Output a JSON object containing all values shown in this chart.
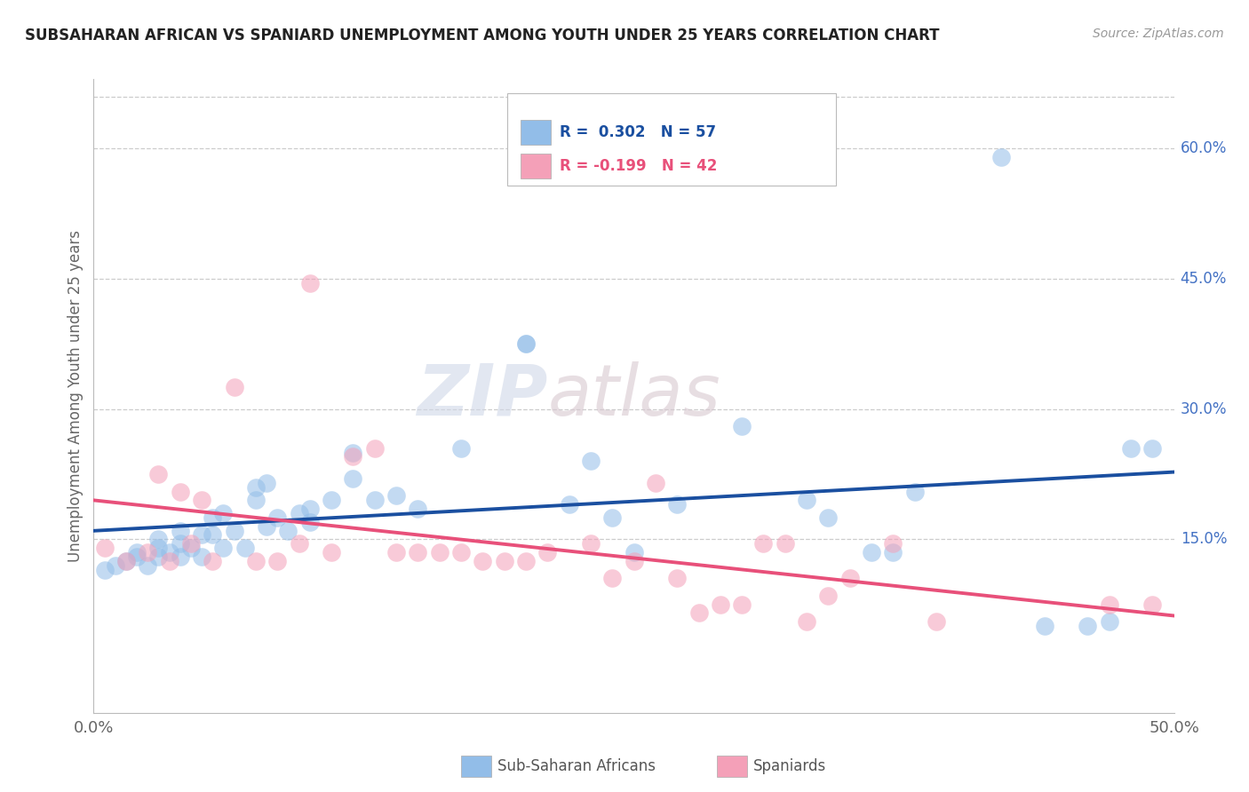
{
  "title": "SUBSAHARAN AFRICAN VS SPANIARD UNEMPLOYMENT AMONG YOUTH UNDER 25 YEARS CORRELATION CHART",
  "source": "Source: ZipAtlas.com",
  "ylabel": "Unemployment Among Youth under 25 years",
  "xlim": [
    0.0,
    0.5
  ],
  "ylim": [
    -0.05,
    0.68
  ],
  "yticks_right": [
    0.15,
    0.3,
    0.45,
    0.6
  ],
  "ytick_labels_right": [
    "15.0%",
    "30.0%",
    "45.0%",
    "60.0%"
  ],
  "blue_color": "#92BDE8",
  "pink_color": "#F4A0B8",
  "blue_line_color": "#1A4FA0",
  "pink_line_color": "#E8507A",
  "label_blue": "Sub-Saharan Africans",
  "label_pink": "Spaniards",
  "watermark_zip": "ZIP",
  "watermark_atlas": "atlas",
  "blue_scatter_x": [
    0.005,
    0.01,
    0.015,
    0.02,
    0.02,
    0.025,
    0.03,
    0.03,
    0.03,
    0.035,
    0.04,
    0.04,
    0.04,
    0.045,
    0.05,
    0.05,
    0.055,
    0.055,
    0.06,
    0.06,
    0.065,
    0.07,
    0.075,
    0.075,
    0.08,
    0.08,
    0.085,
    0.09,
    0.095,
    0.1,
    0.1,
    0.11,
    0.12,
    0.12,
    0.13,
    0.14,
    0.15,
    0.17,
    0.2,
    0.2,
    0.22,
    0.23,
    0.24,
    0.25,
    0.27,
    0.3,
    0.33,
    0.34,
    0.36,
    0.37,
    0.38,
    0.42,
    0.44,
    0.46,
    0.47,
    0.48,
    0.49
  ],
  "blue_scatter_y": [
    0.115,
    0.12,
    0.125,
    0.13,
    0.135,
    0.12,
    0.13,
    0.14,
    0.15,
    0.135,
    0.13,
    0.145,
    0.16,
    0.14,
    0.13,
    0.155,
    0.155,
    0.175,
    0.14,
    0.18,
    0.16,
    0.14,
    0.195,
    0.21,
    0.165,
    0.215,
    0.175,
    0.16,
    0.18,
    0.17,
    0.185,
    0.195,
    0.22,
    0.25,
    0.195,
    0.2,
    0.185,
    0.255,
    0.375,
    0.375,
    0.19,
    0.24,
    0.175,
    0.135,
    0.19,
    0.28,
    0.195,
    0.175,
    0.135,
    0.135,
    0.205,
    0.59,
    0.05,
    0.05,
    0.055,
    0.255,
    0.255
  ],
  "pink_scatter_x": [
    0.005,
    0.015,
    0.025,
    0.03,
    0.035,
    0.04,
    0.045,
    0.05,
    0.055,
    0.065,
    0.075,
    0.085,
    0.095,
    0.1,
    0.11,
    0.12,
    0.13,
    0.14,
    0.15,
    0.16,
    0.17,
    0.18,
    0.19,
    0.2,
    0.21,
    0.23,
    0.24,
    0.25,
    0.26,
    0.27,
    0.28,
    0.29,
    0.3,
    0.31,
    0.32,
    0.33,
    0.34,
    0.35,
    0.37,
    0.39,
    0.47,
    0.49
  ],
  "pink_scatter_y": [
    0.14,
    0.125,
    0.135,
    0.225,
    0.125,
    0.205,
    0.145,
    0.195,
    0.125,
    0.325,
    0.125,
    0.125,
    0.145,
    0.445,
    0.135,
    0.245,
    0.255,
    0.135,
    0.135,
    0.135,
    0.135,
    0.125,
    0.125,
    0.125,
    0.135,
    0.145,
    0.105,
    0.125,
    0.215,
    0.105,
    0.065,
    0.075,
    0.075,
    0.145,
    0.145,
    0.055,
    0.085,
    0.105,
    0.145,
    0.055,
    0.075,
    0.075
  ],
  "background_color": "#FFFFFF",
  "grid_color": "#CCCCCC"
}
